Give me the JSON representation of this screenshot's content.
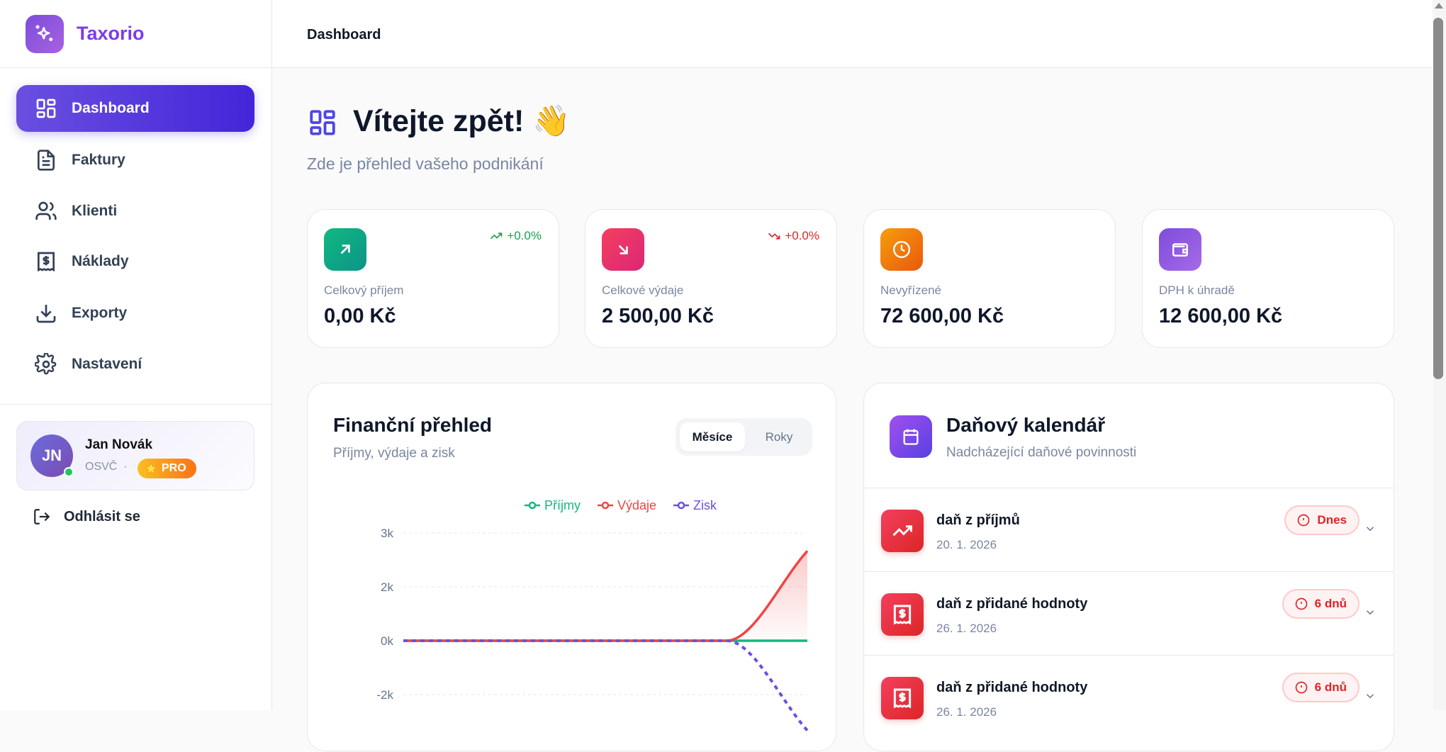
{
  "brand": {
    "name": "Taxorio",
    "accent": "#7c3aed"
  },
  "sidebar": {
    "items": [
      {
        "label": "Dashboard",
        "icon": "layout-grid-icon",
        "active": true
      },
      {
        "label": "Faktury",
        "icon": "file-text-icon"
      },
      {
        "label": "Klienti",
        "icon": "users-icon"
      },
      {
        "label": "Náklady",
        "icon": "receipt-dollar-icon"
      },
      {
        "label": "Exporty",
        "icon": "download-icon"
      },
      {
        "label": "Nastavení",
        "icon": "gear-icon"
      }
    ]
  },
  "user": {
    "initials": "JN",
    "name": "Jan Novák",
    "role": "OSVČ",
    "separator": "·",
    "plan": "PRO",
    "plan_icon": "star-icon",
    "status": "online"
  },
  "logout_label": "Odhlásit se",
  "header": {
    "breadcrumb": "Dashboard"
  },
  "welcome": {
    "title": "Vítejte zpět!",
    "emoji": "👋",
    "subtitle": "Zde je přehled vašeho podnikání"
  },
  "stats": [
    {
      "label": "Celkový příjem",
      "value": "0,00 Kč",
      "trend": "+0.0%",
      "trend_dir": "up",
      "color": "#10b981",
      "icon": "arrow-up-right-icon"
    },
    {
      "label": "Celkové výdaje",
      "value": "2 500,00 Kč",
      "trend": "+0.0%",
      "trend_dir": "down",
      "color": "#e11d48",
      "icon": "arrow-down-right-icon"
    },
    {
      "label": "Nevyřízené",
      "value": "72 600,00 Kč",
      "color": "#f97316",
      "icon": "clock-icon"
    },
    {
      "label": "DPH k úhradě",
      "value": "12 600,00 Kč",
      "color": "#8b5cf6",
      "icon": "wallet-icon"
    }
  ],
  "finance": {
    "title": "Finanční přehled",
    "subtitle": "Příjmy, výdaje a zisk",
    "toggle": [
      {
        "label": "Měsíce",
        "active": true
      },
      {
        "label": "Roky"
      }
    ]
  },
  "chart_data": {
    "type": "line",
    "series": [
      {
        "name": "Příjmy",
        "color": "#10b981",
        "values": [
          0,
          0,
          0,
          0,
          0,
          0
        ]
      },
      {
        "name": "Výdaje",
        "color": "#ef4444",
        "values": [
          0,
          0,
          0,
          0,
          0,
          2500
        ],
        "area": true
      },
      {
        "name": "Zisk",
        "color": "#6d4fe0",
        "values": [
          0,
          0,
          0,
          0,
          0,
          -2500
        ],
        "dashed": true
      }
    ],
    "y_ticks": [
      3000,
      1500,
      0,
      -1500
    ],
    "y_tick_labels": [
      "3k",
      "2k",
      "0k",
      "-2k"
    ],
    "ylim": [
      -3000,
      3000
    ],
    "grid": true,
    "legend": "top"
  },
  "tax": {
    "title": "Daňový kalendář",
    "subtitle": "Nadcházející daňové povinnosti",
    "items": [
      {
        "title": "daň z příjmů",
        "date": "20. 1. 2026",
        "badge": "Dnes",
        "icon": "trending-up-icon"
      },
      {
        "title": "daň z přidané hodnoty",
        "date": "26. 1. 2026",
        "badge": "6 dnů",
        "icon": "receipt-dollar-icon"
      },
      {
        "title": "daň z přidané hodnoty",
        "date": "26. 1. 2026",
        "badge": "6 dnů",
        "icon": "receipt-dollar-icon"
      }
    ]
  }
}
